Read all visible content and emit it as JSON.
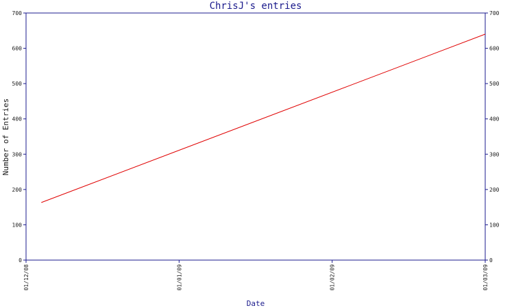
{
  "chart_data": {
    "type": "line",
    "title": "ChrisJ's entries",
    "xlabel": "Date",
    "ylabel": "Number of Entries",
    "x_tick_labels": [
      "01/12/08",
      "01/01/09",
      "01/02/09",
      "01/03/09"
    ],
    "xlim": [
      "2008-12-01",
      "2009-03-01"
    ],
    "ylim": [
      0,
      700
    ],
    "y_ticks": [
      0,
      100,
      200,
      300,
      400,
      500,
      600,
      700
    ],
    "secondary_y_axis": true,
    "grid": false,
    "series": [
      {
        "color": "#e00000",
        "points": [
          {
            "x": "2008-12-04",
            "y": 163
          },
          {
            "x": "2009-03-01",
            "y": 640
          }
        ]
      }
    ],
    "colors": {
      "axis": "#1a1a8c",
      "title": "#1a1a8c",
      "line": "#e00000"
    }
  }
}
